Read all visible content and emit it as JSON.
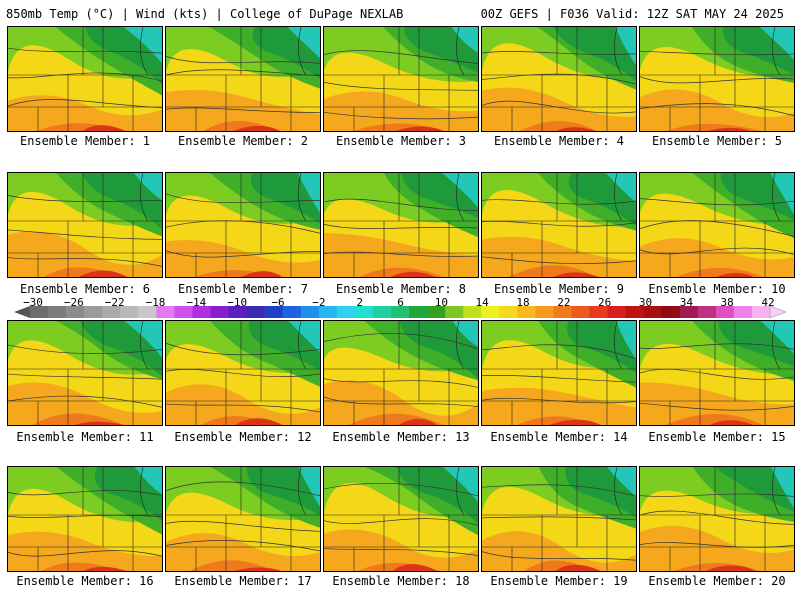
{
  "header": {
    "left": "850mb Temp (°C) | Wind (kts) | College of DuPage NEXLAB",
    "right": "00Z GEFS | F036 Valid: 12Z SAT MAY 24 2025"
  },
  "colorbar": {
    "labels": [
      "−30",
      "−26",
      "−22",
      "−18",
      "−14",
      "−10",
      "−6",
      "−2",
      "2",
      "6",
      "10",
      "14",
      "18",
      "22",
      "26",
      "30",
      "34",
      "38",
      "42"
    ],
    "colors": [
      "#6e6e6e",
      "#7d7d7d",
      "#8c8c8c",
      "#9b9b9b",
      "#aaaaaa",
      "#b9b9b9",
      "#c8c8c8",
      "#e07cf0",
      "#d050f0",
      "#b030e0",
      "#8a1fd0",
      "#5d1fc0",
      "#3a2bb0",
      "#2040c8",
      "#1e63e0",
      "#1f8fe8",
      "#28b4f0",
      "#30d2f0",
      "#20e0d0",
      "#20d0a0",
      "#20c070",
      "#1ea83c",
      "#33a020",
      "#7cc820",
      "#c0e01e",
      "#f0f020",
      "#f8d81e",
      "#f8b81e",
      "#f89a1e",
      "#f07a1e",
      "#f05a1e",
      "#e83a1e",
      "#d81e1e",
      "#c01414",
      "#a80f0f",
      "#900a18",
      "#a01c50",
      "#c03080",
      "#e050c0",
      "#f080e8",
      "#f8b0f0"
    ]
  },
  "members": [
    {
      "label": "Ensemble Member: 1"
    },
    {
      "label": "Ensemble Member: 2"
    },
    {
      "label": "Ensemble Member: 3"
    },
    {
      "label": "Ensemble Member: 4"
    },
    {
      "label": "Ensemble Member: 5"
    },
    {
      "label": "Ensemble Member: 6"
    },
    {
      "label": "Ensemble Member: 7"
    },
    {
      "label": "Ensemble Member: 8"
    },
    {
      "label": "Ensemble Member: 9"
    },
    {
      "label": "Ensemble Member: 10"
    },
    {
      "label": "Ensemble Member: 11"
    },
    {
      "label": "Ensemble Member: 12"
    },
    {
      "label": "Ensemble Member: 13"
    },
    {
      "label": "Ensemble Member: 14"
    },
    {
      "label": "Ensemble Member: 15"
    },
    {
      "label": "Ensemble Member: 16"
    },
    {
      "label": "Ensemble Member: 17"
    },
    {
      "label": "Ensemble Member: 18"
    },
    {
      "label": "Ensemble Member: 19"
    },
    {
      "label": "Ensemble Member: 20"
    }
  ]
}
